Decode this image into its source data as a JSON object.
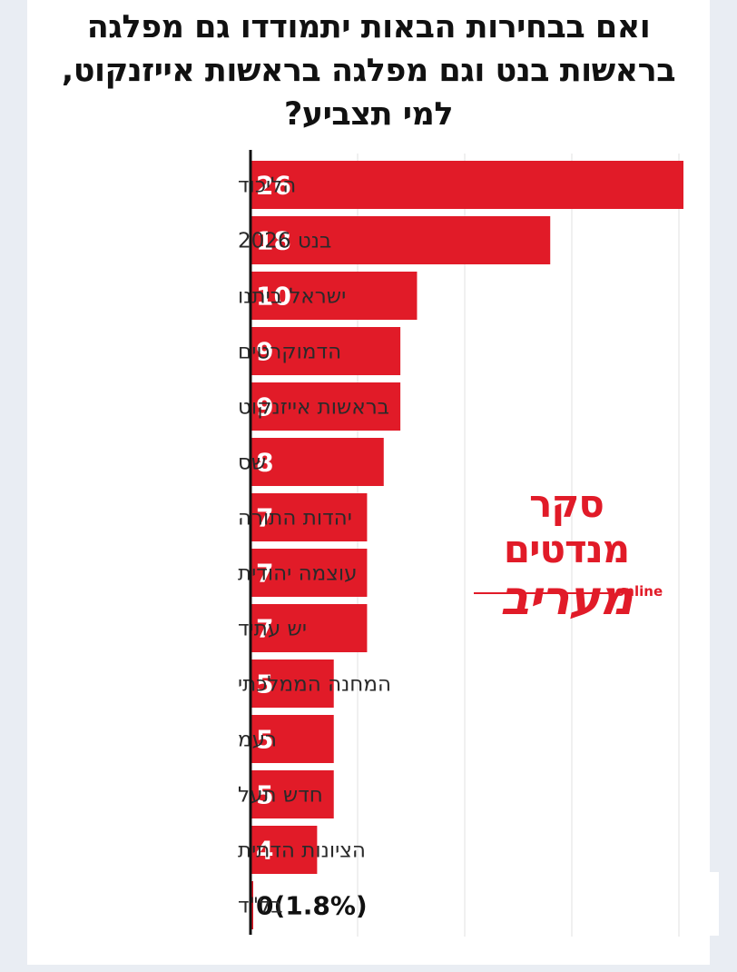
{
  "title_lines": [
    "ואם בבחירות הבאות יתמודדו גם מפלגה",
    "בראשות בנט וגם מפלגה בראשות אייזנקוט,",
    "למי תצביע?"
  ],
  "chart_data": {
    "type": "bar",
    "orientation": "horizontal",
    "categories": [
      "הליכוד",
      "בנט 2026",
      "ישראל ביתנו",
      "הדמוקרטים",
      "בראשות אייזנקוט",
      "שס",
      "יהדות התורה",
      "עוצמה יהודית",
      "יש עתיד",
      "המחנה הממלכתי",
      "רעמ",
      "חדש תעל",
      "הציונות הדתית",
      "בל\"ד"
    ],
    "values": [
      26,
      18,
      10,
      9,
      9,
      8,
      7,
      7,
      7,
      5,
      5,
      5,
      4,
      0
    ],
    "value_labels": [
      "26",
      "18",
      "10",
      "9",
      "9",
      "8",
      "7",
      "7",
      "7",
      "5",
      "5",
      "5",
      "4",
      "0(1.8%)"
    ],
    "xlim": [
      0,
      26
    ],
    "grid": true,
    "bar_color": "#e11b28"
  },
  "logo": {
    "top_text": "סקר מנדטים",
    "brand_text": "מעריב",
    "sub_text": "online",
    "color": "#e11b28"
  }
}
